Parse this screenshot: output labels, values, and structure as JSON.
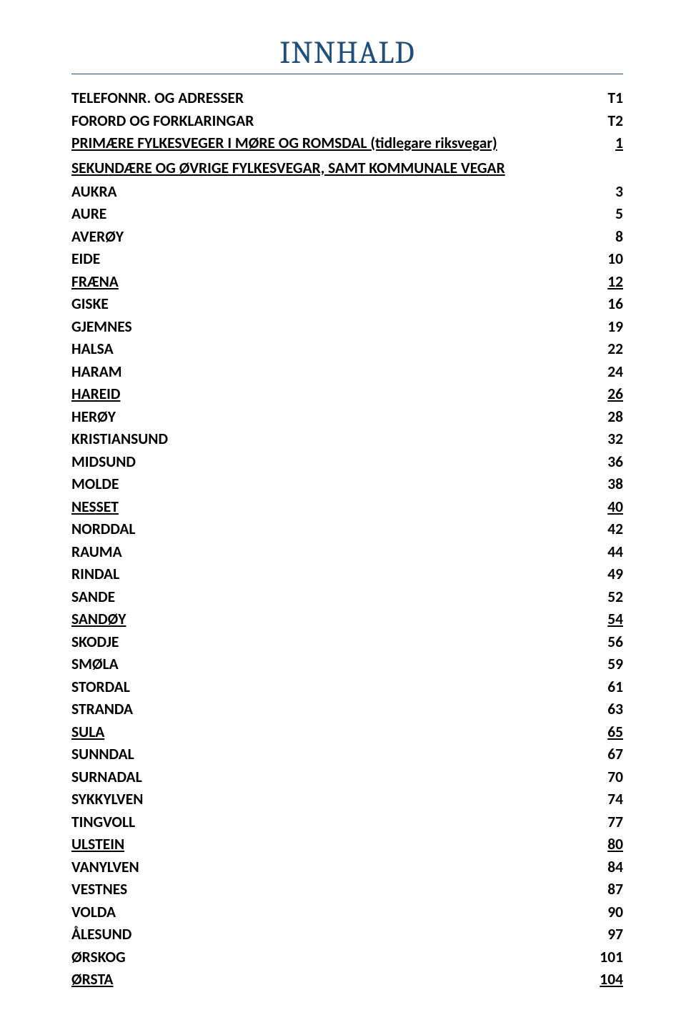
{
  "title": "INNHALD",
  "title_color": "#1f4e79",
  "text_color": "#000000",
  "rule_color": "#1f4e79",
  "background_color": "#ffffff",
  "font_size": 21.5,
  "font_weight": "bold",
  "entries": [
    {
      "type": "entry",
      "label": "TELEFONNR. OG ADRESSER",
      "page": "T1",
      "underline": false
    },
    {
      "type": "entry",
      "label": "FORORD OG FORKLARINGAR",
      "page": "T2",
      "underline": false
    },
    {
      "type": "entry",
      "label": "PRIMÆRE FYLKESVEGER I MØRE OG ROMSDAL (tidlegare riksvegar)",
      "page": "1",
      "underline": true
    },
    {
      "type": "section",
      "label": "SEKUNDÆRE OG ØVRIGE FYLKESVEGAR, SAMT KOMMUNALE VEGAR"
    },
    {
      "type": "entry",
      "label": "AUKRA",
      "page": "3",
      "underline": false
    },
    {
      "type": "entry",
      "label": "AURE",
      "page": "5",
      "underline": false
    },
    {
      "type": "entry",
      "label": "AVERØY",
      "page": "8",
      "underline": false
    },
    {
      "type": "entry",
      "label": "EIDE",
      "page": "10",
      "underline": false
    },
    {
      "type": "entry",
      "label": "FRÆNA",
      "page": "12",
      "underline": true
    },
    {
      "type": "entry",
      "label": "GISKE",
      "page": "16",
      "underline": false
    },
    {
      "type": "entry",
      "label": "GJEMNES",
      "page": "19",
      "underline": false
    },
    {
      "type": "entry",
      "label": "HALSA",
      "page": "22",
      "underline": false
    },
    {
      "type": "entry",
      "label": "HARAM",
      "page": "24",
      "underline": false
    },
    {
      "type": "entry",
      "label": "HAREID",
      "page": "26",
      "underline": true
    },
    {
      "type": "entry",
      "label": "HERØY",
      "page": "28",
      "underline": false
    },
    {
      "type": "entry",
      "label": "KRISTIANSUND",
      "page": "32",
      "underline": false
    },
    {
      "type": "entry",
      "label": "MIDSUND",
      "page": "36",
      "underline": false
    },
    {
      "type": "entry",
      "label": "MOLDE",
      "page": "38",
      "underline": false
    },
    {
      "type": "entry",
      "label": "NESSET",
      "page": "40",
      "underline": true
    },
    {
      "type": "entry",
      "label": "NORDDAL",
      "page": "42",
      "underline": false
    },
    {
      "type": "entry",
      "label": "RAUMA",
      "page": "44",
      "underline": false
    },
    {
      "type": "entry",
      "label": "RINDAL",
      "page": "49",
      "underline": false
    },
    {
      "type": "entry",
      "label": "SANDE",
      "page": "52",
      "underline": false
    },
    {
      "type": "entry",
      "label": "SANDØY",
      "page": "54",
      "underline": true
    },
    {
      "type": "entry",
      "label": "SKODJE",
      "page": "56",
      "underline": false
    },
    {
      "type": "entry",
      "label": "SMØLA",
      "page": "59",
      "underline": false
    },
    {
      "type": "entry",
      "label": "STORDAL",
      "page": "61",
      "underline": false
    },
    {
      "type": "entry",
      "label": "STRANDA",
      "page": "63",
      "underline": false
    },
    {
      "type": "entry",
      "label": "SULA",
      "page": "65",
      "underline": true
    },
    {
      "type": "entry",
      "label": "SUNNDAL",
      "page": "67",
      "underline": false
    },
    {
      "type": "entry",
      "label": "SURNADAL",
      "page": "70",
      "underline": false
    },
    {
      "type": "entry",
      "label": "SYKKYLVEN",
      "page": "74",
      "underline": false
    },
    {
      "type": "entry",
      "label": "TINGVOLL",
      "page": "77",
      "underline": false
    },
    {
      "type": "entry",
      "label": "ULSTEIN",
      "page": "80",
      "underline": true
    },
    {
      "type": "entry",
      "label": "VANYLVEN",
      "page": "84",
      "underline": false
    },
    {
      "type": "entry",
      "label": "VESTNES",
      "page": "87",
      "underline": false
    },
    {
      "type": "entry",
      "label": "VOLDA",
      "page": "90",
      "underline": false
    },
    {
      "type": "entry",
      "label": "ÅLESUND",
      "page": "97",
      "underline": false
    },
    {
      "type": "entry",
      "label": "ØRSKOG",
      "page": "101",
      "underline": false
    },
    {
      "type": "entry",
      "label": "ØRSTA",
      "page": "104",
      "underline": true
    }
  ]
}
